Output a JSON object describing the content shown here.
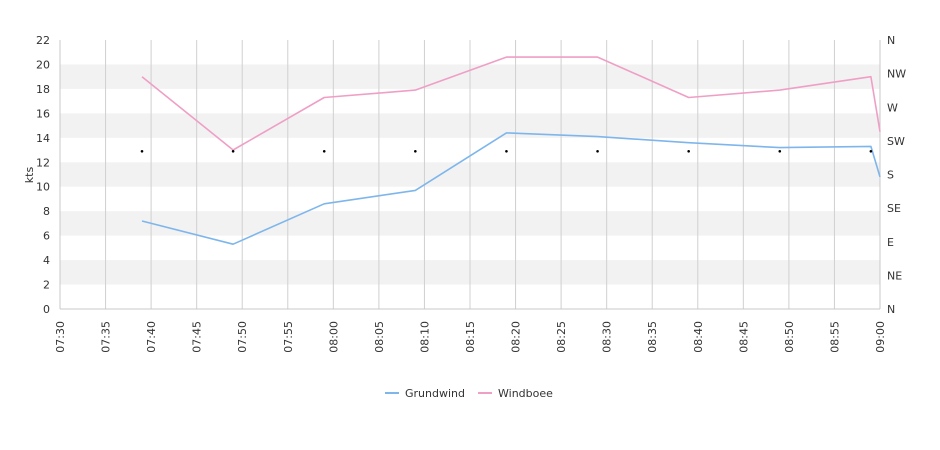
{
  "chart_data": {
    "type": "line",
    "ylabel": "kts",
    "ylim": [
      0,
      22
    ],
    "yticks": [
      0,
      2,
      4,
      6,
      8,
      10,
      12,
      14,
      16,
      18,
      20,
      22
    ],
    "x_range": [
      "07:30",
      "09:00"
    ],
    "x_ticks": [
      "07:30",
      "07:35",
      "07:40",
      "07:45",
      "07:50",
      "07:55",
      "08:00",
      "08:05",
      "08:10",
      "08:15",
      "08:20",
      "08:25",
      "08:30",
      "08:35",
      "08:40",
      "08:45",
      "08:50",
      "08:55",
      "09:00"
    ],
    "right_axis_labels": [
      "N",
      "NE",
      "E",
      "SE",
      "S",
      "SW",
      "W",
      "NW",
      "N"
    ],
    "grid": {
      "horizontal_bands": true,
      "vertical_lines": true
    },
    "legend_position": "bottom-center",
    "series": [
      {
        "name": "Grundwind",
        "color": "#7eb6ec",
        "points": [
          {
            "x": "07:39",
            "y": 7.2
          },
          {
            "x": "07:49",
            "y": 5.3
          },
          {
            "x": "07:59",
            "y": 8.6
          },
          {
            "x": "08:09",
            "y": 9.7
          },
          {
            "x": "08:19",
            "y": 14.4
          },
          {
            "x": "08:29",
            "y": 14.1
          },
          {
            "x": "08:39",
            "y": 13.6
          },
          {
            "x": "08:49",
            "y": 13.2
          },
          {
            "x": "08:59",
            "y": 13.3
          },
          {
            "x": "09:00",
            "y": 10.8
          }
        ]
      },
      {
        "name": "Windboee",
        "color": "#ef9fc6",
        "points": [
          {
            "x": "07:39",
            "y": 19.0
          },
          {
            "x": "07:49",
            "y": 13.0
          },
          {
            "x": "07:59",
            "y": 17.3
          },
          {
            "x": "08:09",
            "y": 17.9
          },
          {
            "x": "08:19",
            "y": 20.6
          },
          {
            "x": "08:29",
            "y": 20.6
          },
          {
            "x": "08:39",
            "y": 17.3
          },
          {
            "x": "08:49",
            "y": 17.9
          },
          {
            "x": "08:59",
            "y": 19.0
          },
          {
            "x": "09:00",
            "y": 14.5
          }
        ]
      },
      {
        "name": "",
        "kind": "direction-markers",
        "color": "#000000",
        "points": [
          {
            "x": "07:39",
            "y": 12.9
          },
          {
            "x": "07:49",
            "y": 12.9
          },
          {
            "x": "07:59",
            "y": 12.9
          },
          {
            "x": "08:09",
            "y": 12.9
          },
          {
            "x": "08:19",
            "y": 12.9
          },
          {
            "x": "08:29",
            "y": 12.9
          },
          {
            "x": "08:39",
            "y": 12.9
          },
          {
            "x": "08:49",
            "y": 12.9
          },
          {
            "x": "08:59",
            "y": 12.9
          }
        ]
      }
    ]
  }
}
